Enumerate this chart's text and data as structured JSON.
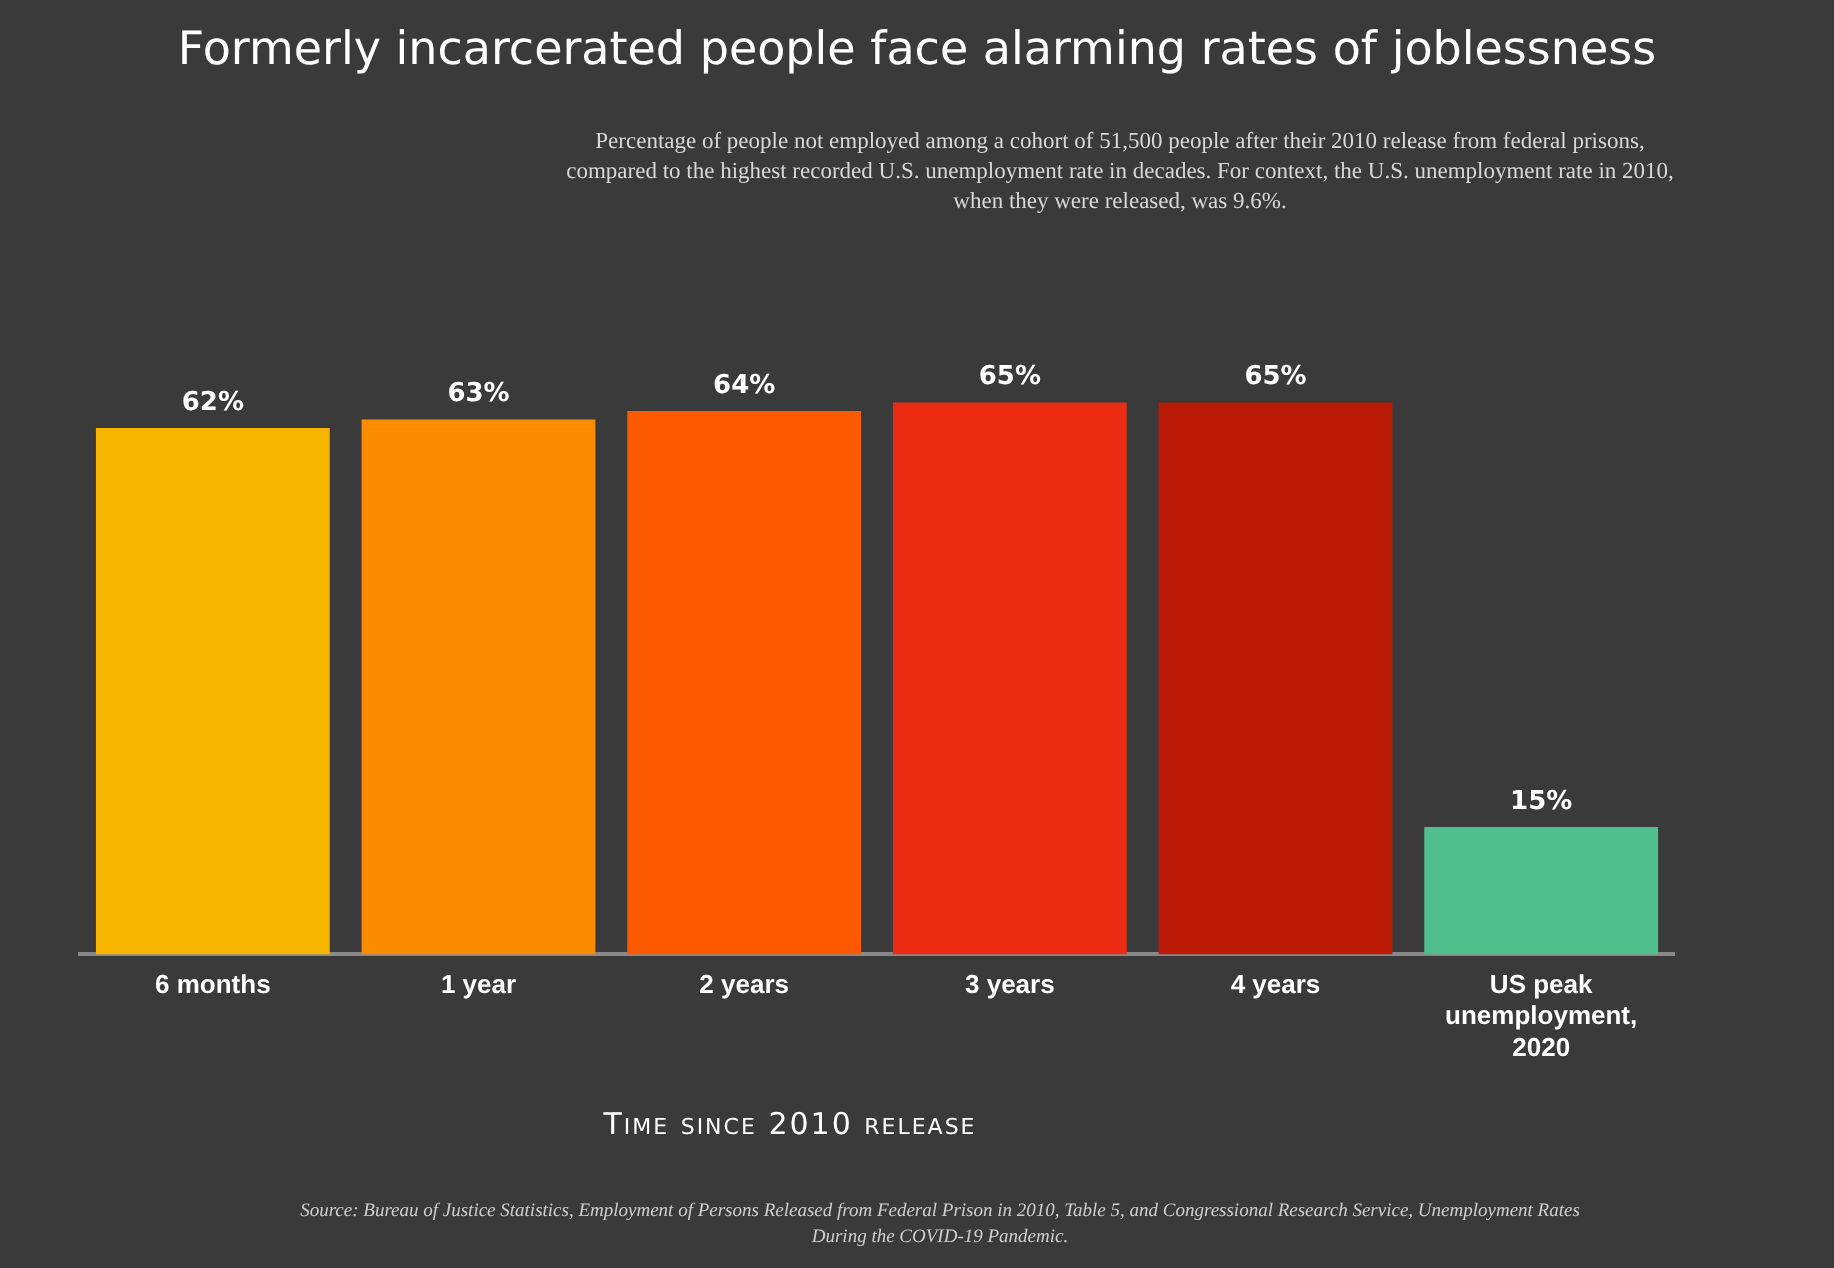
{
  "chart_data": {
    "type": "bar",
    "title": "Formerly incarcerated people face alarming rates of joblessness",
    "subtitle": "Percentage of people not employed among a cohort of 51,500 people after their 2010 release from federal prisons, compared to the highest recorded U.S. unemployment rate in decades. For context, the U.S. unemployment rate in 2010, when they were released, was 9.6%.",
    "xlabel": "Time since 2010 release",
    "categories": [
      "6 months",
      "1 year",
      "2 years",
      "3 years",
      "4 years",
      "US peak unemployment, 2020"
    ],
    "values": [
      62,
      63,
      64,
      65,
      65,
      15
    ],
    "colors": [
      "#f7b500",
      "#fb8c00",
      "#fd5a00",
      "#ec2b13",
      "#bb1a06",
      "#4fc08d"
    ],
    "data_labels": true,
    "value_labels": [
      "62%",
      "63%",
      "64%",
      "65%",
      "65%",
      "15%"
    ],
    "annotations": [
      "Source: Bureau of Justice Statistics, Employment of Persons Released from Federal Prison in 2010, Table 5, and Congressional Research Service, Unemployment Rates During the COVID-19 Pandemic."
    ],
    "grid": false,
    "legend": false
  }
}
